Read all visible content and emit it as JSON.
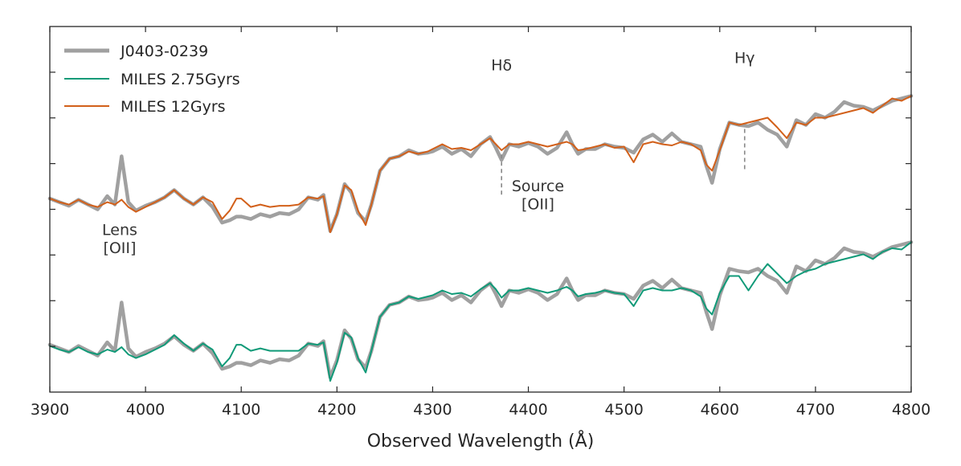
{
  "chart_data": {
    "type": "line",
    "xlabel": "Observed Wavelength (Å)",
    "ylabel": "",
    "xlim": [
      3900,
      4800
    ],
    "ylim": [
      0,
      1
    ],
    "x_ticks": [
      3900,
      4000,
      4100,
      4200,
      4300,
      4400,
      4500,
      4600,
      4700,
      4800
    ],
    "x_tick_labels": [
      "3900",
      "4000",
      "4100",
      "4200",
      "4300",
      "4400",
      "4500",
      "4600",
      "4700",
      "4800"
    ],
    "y_ticks": [
      0.125,
      0.25,
      0.375,
      0.5,
      0.625,
      0.75,
      0.875
    ],
    "grid": false,
    "legend_position": "top-left",
    "legend": [
      {
        "label": "J0403-0239",
        "color": "#a0a0a0"
      },
      {
        "label": "MILES 2.75Gyrs",
        "color": "#109a78"
      },
      {
        "label": "MILES 12Gyrs",
        "color": "#d2601a"
      }
    ],
    "series": [
      {
        "name": "J0403-0239 (upper copy)",
        "color": "#a0a0a0",
        "offset": 0.4,
        "x": [
          3900,
          3910,
          3920,
          3930,
          3940,
          3950,
          3960,
          3968,
          3975,
          3982,
          3990,
          4000,
          4010,
          4020,
          4030,
          4040,
          4050,
          4060,
          4070,
          4080,
          4088,
          4095,
          4100,
          4110,
          4120,
          4130,
          4140,
          4150,
          4160,
          4170,
          4180,
          4186,
          4193,
          4200,
          4208,
          4215,
          4222,
          4230,
          4236,
          4245,
          4255,
          4265,
          4275,
          4285,
          4295,
          4300,
          4310,
          4320,
          4330,
          4340,
          4350,
          4360,
          4366,
          4372,
          4380,
          4390,
          4400,
          4410,
          4420,
          4430,
          4440,
          4446,
          4452,
          4460,
          4470,
          4480,
          4490,
          4500,
          4510,
          4520,
          4530,
          4540,
          4550,
          4560,
          4570,
          4580,
          4586,
          4592,
          4600,
          4610,
          4620,
          4630,
          4640,
          4650,
          4660,
          4670,
          4680,
          4690,
          4700,
          4710,
          4720,
          4730,
          4740,
          4750,
          4760,
          4770,
          4780,
          4790,
          4800
        ],
        "y": [
          0.15,
          0.12,
          0.09,
          0.14,
          0.1,
          0.06,
          0.17,
          0.1,
          0.5,
          0.12,
          0.05,
          0.09,
          0.12,
          0.16,
          0.22,
          0.15,
          0.1,
          0.16,
          0.08,
          -0.05,
          -0.03,
          0.0,
          0.0,
          -0.02,
          0.02,
          0.0,
          0.03,
          0.02,
          0.06,
          0.16,
          0.14,
          0.18,
          -0.12,
          0.02,
          0.27,
          0.2,
          0.03,
          -0.04,
          0.1,
          0.38,
          0.48,
          0.5,
          0.55,
          0.52,
          0.53,
          0.54,
          0.58,
          0.52,
          0.56,
          0.5,
          0.6,
          0.66,
          0.57,
          0.47,
          0.6,
          0.58,
          0.61,
          0.58,
          0.52,
          0.57,
          0.7,
          0.6,
          0.52,
          0.56,
          0.56,
          0.6,
          0.58,
          0.57,
          0.53,
          0.64,
          0.68,
          0.62,
          0.69,
          0.62,
          0.6,
          0.58,
          0.42,
          0.28,
          0.56,
          0.78,
          0.76,
          0.75,
          0.78,
          0.72,
          0.68,
          0.58,
          0.8,
          0.76,
          0.85,
          0.82,
          0.87,
          0.95,
          0.92,
          0.91,
          0.88,
          0.92,
          0.96,
          0.98,
          1.0
        ]
      },
      {
        "name": "MILES 12Gyrs",
        "color": "#d2601a",
        "offset": 0.4,
        "x": [
          3900,
          3910,
          3920,
          3930,
          3940,
          3950,
          3960,
          3968,
          3975,
          3982,
          3990,
          4000,
          4010,
          4020,
          4030,
          4040,
          4050,
          4060,
          4070,
          4080,
          4088,
          4095,
          4100,
          4110,
          4120,
          4130,
          4140,
          4150,
          4160,
          4170,
          4180,
          4186,
          4193,
          4200,
          4208,
          4215,
          4222,
          4230,
          4236,
          4245,
          4255,
          4265,
          4275,
          4285,
          4295,
          4300,
          4310,
          4320,
          4330,
          4340,
          4350,
          4360,
          4366,
          4372,
          4380,
          4390,
          4400,
          4410,
          4420,
          4430,
          4440,
          4446,
          4452,
          4460,
          4470,
          4480,
          4490,
          4500,
          4510,
          4520,
          4530,
          4540,
          4550,
          4560,
          4570,
          4580,
          4586,
          4592,
          4600,
          4610,
          4620,
          4630,
          4640,
          4650,
          4660,
          4670,
          4680,
          4690,
          4700,
          4710,
          4720,
          4730,
          4740,
          4750,
          4760,
          4770,
          4780,
          4790,
          4800
        ],
        "y": [
          0.15,
          0.12,
          0.1,
          0.14,
          0.1,
          0.08,
          0.12,
          0.1,
          0.14,
          0.08,
          0.04,
          0.08,
          0.12,
          0.16,
          0.22,
          0.15,
          0.1,
          0.16,
          0.12,
          -0.02,
          0.05,
          0.15,
          0.15,
          0.08,
          0.1,
          0.08,
          0.09,
          0.09,
          0.1,
          0.16,
          0.15,
          0.17,
          -0.13,
          0.02,
          0.26,
          0.22,
          0.05,
          -0.07,
          0.1,
          0.38,
          0.48,
          0.5,
          0.54,
          0.52,
          0.54,
          0.56,
          0.6,
          0.56,
          0.57,
          0.55,
          0.6,
          0.65,
          0.6,
          0.55,
          0.6,
          0.6,
          0.62,
          0.6,
          0.58,
          0.6,
          0.62,
          0.6,
          0.55,
          0.56,
          0.58,
          0.6,
          0.57,
          0.58,
          0.45,
          0.6,
          0.62,
          0.6,
          0.59,
          0.62,
          0.6,
          0.55,
          0.43,
          0.38,
          0.55,
          0.78,
          0.76,
          0.78,
          0.8,
          0.82,
          0.74,
          0.65,
          0.78,
          0.76,
          0.82,
          0.82,
          0.84,
          0.86,
          0.88,
          0.9,
          0.86,
          0.92,
          0.98,
          0.96,
          1.0
        ]
      },
      {
        "name": "J0403-0239",
        "color": "#a0a0a0",
        "offset": 0.0,
        "x": [
          3900,
          3910,
          3920,
          3930,
          3940,
          3950,
          3960,
          3968,
          3975,
          3982,
          3990,
          4000,
          4010,
          4020,
          4030,
          4040,
          4050,
          4060,
          4070,
          4080,
          4088,
          4095,
          4100,
          4110,
          4120,
          4130,
          4140,
          4150,
          4160,
          4170,
          4180,
          4186,
          4193,
          4200,
          4208,
          4215,
          4222,
          4230,
          4236,
          4245,
          4255,
          4265,
          4275,
          4285,
          4295,
          4300,
          4310,
          4320,
          4330,
          4340,
          4350,
          4360,
          4366,
          4372,
          4380,
          4390,
          4400,
          4410,
          4420,
          4430,
          4440,
          4446,
          4452,
          4460,
          4470,
          4480,
          4490,
          4500,
          4510,
          4520,
          4530,
          4540,
          4550,
          4560,
          4570,
          4580,
          4586,
          4592,
          4600,
          4610,
          4620,
          4630,
          4640,
          4650,
          4660,
          4670,
          4680,
          4690,
          4700,
          4710,
          4720,
          4730,
          4740,
          4750,
          4760,
          4770,
          4780,
          4790,
          4800
        ],
        "y": [
          0.15,
          0.12,
          0.09,
          0.14,
          0.1,
          0.06,
          0.17,
          0.1,
          0.5,
          0.12,
          0.05,
          0.09,
          0.12,
          0.16,
          0.22,
          0.15,
          0.1,
          0.16,
          0.08,
          -0.05,
          -0.03,
          0.0,
          0.0,
          -0.02,
          0.02,
          0.0,
          0.03,
          0.02,
          0.06,
          0.16,
          0.14,
          0.18,
          -0.12,
          0.02,
          0.27,
          0.2,
          0.03,
          -0.04,
          0.1,
          0.38,
          0.48,
          0.5,
          0.55,
          0.52,
          0.53,
          0.54,
          0.58,
          0.52,
          0.56,
          0.5,
          0.6,
          0.66,
          0.57,
          0.47,
          0.6,
          0.58,
          0.61,
          0.58,
          0.52,
          0.57,
          0.7,
          0.6,
          0.52,
          0.56,
          0.56,
          0.6,
          0.58,
          0.57,
          0.53,
          0.64,
          0.68,
          0.62,
          0.69,
          0.62,
          0.6,
          0.58,
          0.42,
          0.28,
          0.56,
          0.78,
          0.76,
          0.75,
          0.78,
          0.72,
          0.68,
          0.58,
          0.8,
          0.76,
          0.85,
          0.82,
          0.87,
          0.95,
          0.92,
          0.91,
          0.88,
          0.92,
          0.96,
          0.98,
          1.0
        ]
      },
      {
        "name": "MILES 2.75Gyrs",
        "color": "#109a78",
        "offset": 0.0,
        "x": [
          3900,
          3910,
          3920,
          3930,
          3940,
          3950,
          3960,
          3968,
          3975,
          3982,
          3990,
          4000,
          4010,
          4020,
          4030,
          4040,
          4050,
          4060,
          4070,
          4080,
          4088,
          4095,
          4100,
          4110,
          4120,
          4130,
          4140,
          4150,
          4160,
          4170,
          4180,
          4186,
          4193,
          4200,
          4208,
          4215,
          4222,
          4230,
          4236,
          4245,
          4255,
          4265,
          4275,
          4285,
          4295,
          4300,
          4310,
          4320,
          4330,
          4340,
          4350,
          4360,
          4366,
          4372,
          4380,
          4390,
          4400,
          4410,
          4420,
          4430,
          4440,
          4446,
          4452,
          4460,
          4470,
          4480,
          4490,
          4500,
          4510,
          4520,
          4530,
          4540,
          4550,
          4560,
          4570,
          4580,
          4586,
          4592,
          4600,
          4610,
          4620,
          4630,
          4640,
          4650,
          4660,
          4670,
          4680,
          4690,
          4700,
          4710,
          4720,
          4730,
          4740,
          4750,
          4760,
          4770,
          4780,
          4790,
          4800
        ],
        "y": [
          0.14,
          0.11,
          0.09,
          0.13,
          0.09,
          0.07,
          0.11,
          0.09,
          0.13,
          0.07,
          0.04,
          0.07,
          0.11,
          0.15,
          0.23,
          0.16,
          0.1,
          0.16,
          0.11,
          -0.03,
          0.04,
          0.15,
          0.15,
          0.1,
          0.12,
          0.1,
          0.1,
          0.1,
          0.1,
          0.16,
          0.15,
          0.17,
          -0.15,
          0.0,
          0.25,
          0.21,
          0.04,
          -0.08,
          0.1,
          0.38,
          0.48,
          0.5,
          0.55,
          0.53,
          0.55,
          0.56,
          0.6,
          0.57,
          0.58,
          0.55,
          0.61,
          0.66,
          0.61,
          0.54,
          0.6,
          0.6,
          0.62,
          0.6,
          0.58,
          0.6,
          0.63,
          0.6,
          0.55,
          0.57,
          0.58,
          0.6,
          0.58,
          0.57,
          0.47,
          0.6,
          0.62,
          0.6,
          0.6,
          0.62,
          0.6,
          0.55,
          0.45,
          0.4,
          0.58,
          0.72,
          0.72,
          0.6,
          0.72,
          0.82,
          0.74,
          0.66,
          0.72,
          0.76,
          0.78,
          0.82,
          0.84,
          0.86,
          0.88,
          0.9,
          0.86,
          0.92,
          0.95,
          0.94,
          1.0
        ]
      }
    ],
    "annotations": [
      {
        "id": "hdelta",
        "text": "Hδ",
        "x": 4372,
        "level": 0.88
      },
      {
        "id": "hgamma",
        "text": "Hγ",
        "x": 4626,
        "level": 0.9
      },
      {
        "id": "source_line1",
        "text": "Source",
        "x": 4410,
        "level": 0.55
      },
      {
        "id": "source_line2",
        "text": "[OII]",
        "x": 4410,
        "level": 0.5
      },
      {
        "id": "lens_line1",
        "text": "Lens",
        "x": 3973,
        "level": 0.43
      },
      {
        "id": "lens_line2",
        "text": "[OII]",
        "x": 3973,
        "level": 0.38
      }
    ],
    "markers": [
      {
        "id": "source-oii-marker",
        "x": 4372,
        "y_from": 0.54,
        "y_to": 0.65
      },
      {
        "id": "hgamma-marker",
        "x": 4626,
        "y_from": 0.61,
        "y_to": 0.72
      }
    ]
  }
}
